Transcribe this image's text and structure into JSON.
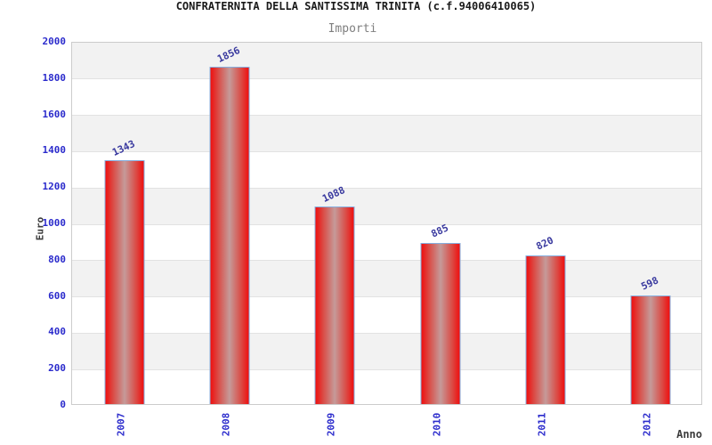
{
  "chart_data": {
    "type": "bar",
    "title": "CONFRATERNITA DELLA SANTISSIMA TRINITA (c.f.94006410065)",
    "subtitle": "Importi",
    "categories": [
      "2007",
      "2008",
      "2009",
      "2010",
      "2011",
      "2012"
    ],
    "values": [
      1343,
      1856,
      1088,
      885,
      820,
      598
    ],
    "xlabel": "Anno",
    "ylabel": "Euro",
    "ylim": [
      0,
      2000
    ],
    "yticks": [
      0,
      200,
      400,
      600,
      800,
      1000,
      1200,
      1400,
      1600,
      1800,
      2000
    ],
    "grid": true,
    "legend_position": "none",
    "colors": {
      "bar_edge": "#ee0f0f",
      "bar_mid": "#c59a99",
      "bar_border": "#85aede",
      "tick_label": "#2b2bcc",
      "value_label": "#38389e",
      "band_alt": "#f2f2f2",
      "band_main": "#ffffff",
      "title": "#1a1a1a",
      "subtitle": "#7f7f7f",
      "axis_title": "#3c3c3c"
    }
  }
}
